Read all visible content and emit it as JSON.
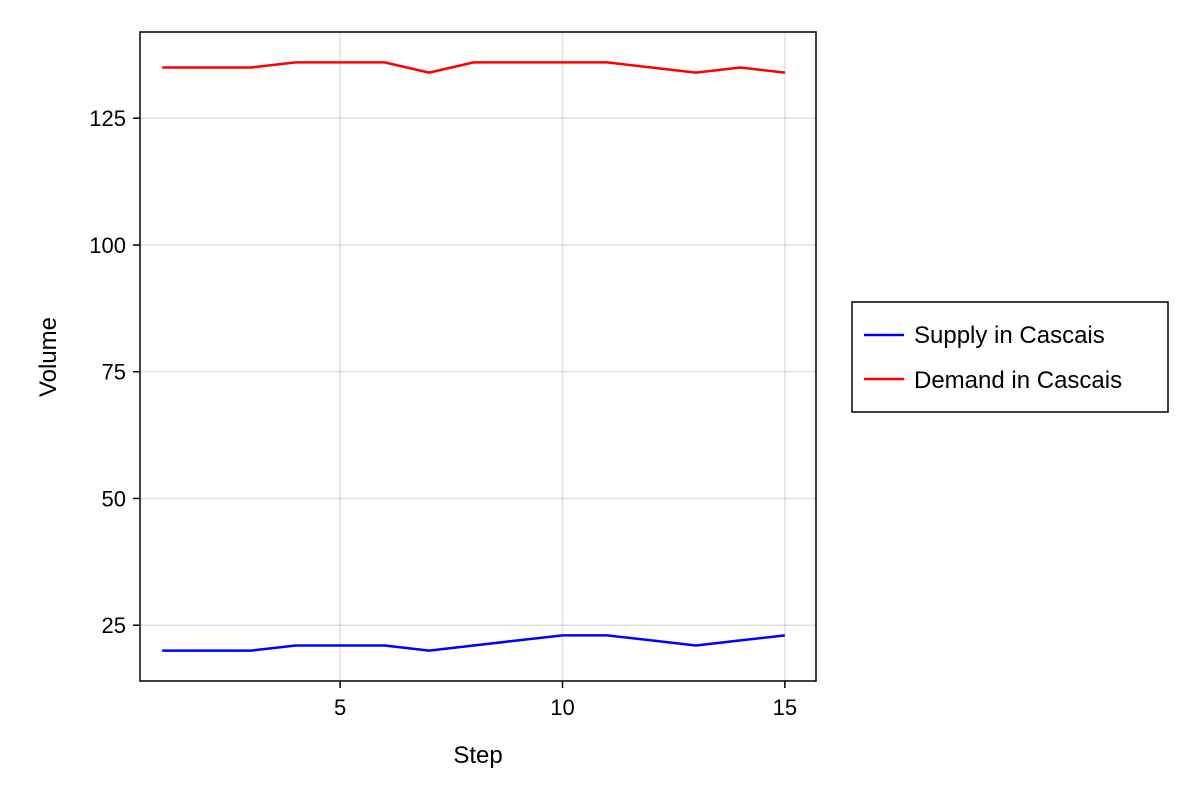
{
  "chart_data": {
    "type": "line",
    "title": "",
    "xlabel": "Step",
    "ylabel": "Volume",
    "xlim": [
      0.5,
      15.7
    ],
    "ylim": [
      14,
      142
    ],
    "x_ticks": [
      5,
      10,
      15
    ],
    "y_ticks": [
      25,
      50,
      75,
      100,
      125
    ],
    "grid": true,
    "legend_position": "right",
    "x": [
      1,
      2,
      3,
      4,
      5,
      6,
      7,
      8,
      9,
      10,
      11,
      12,
      13,
      14,
      15
    ],
    "series": [
      {
        "name": "Supply in Cascais",
        "color": "#0000ff",
        "values": [
          20,
          20,
          20,
          21,
          21,
          21,
          20,
          21,
          22,
          23,
          23,
          22,
          21,
          22,
          23
        ]
      },
      {
        "name": "Demand in Cascais",
        "color": "#ff0000",
        "values": [
          135,
          135,
          135,
          136,
          136,
          136,
          134,
          136,
          136,
          136,
          136,
          135,
          134,
          135,
          134
        ]
      }
    ]
  }
}
